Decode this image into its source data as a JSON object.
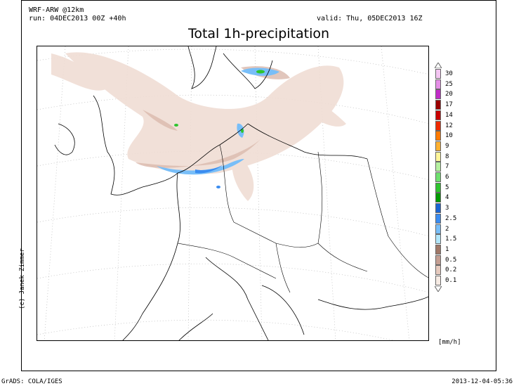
{
  "header": {
    "model": "WRF-ARW @12km",
    "run": "run: 04DEC2013 00Z +40h",
    "valid": "valid: Thu, 05DEC2013 16Z",
    "title": "Total 1h-precipitation"
  },
  "credit": "(c) Janek Zimmer",
  "legend": {
    "unit": "[mm/h]",
    "items": [
      {
        "label": "30",
        "color": "#f4c6f2"
      },
      {
        "label": "25",
        "color": "#e58fe6"
      },
      {
        "label": "20",
        "color": "#c02cc6"
      },
      {
        "label": "17",
        "color": "#9a0000"
      },
      {
        "label": "14",
        "color": "#c80000"
      },
      {
        "label": "12",
        "color": "#ee2a00"
      },
      {
        "label": "10",
        "color": "#ff7a00"
      },
      {
        "label": "9",
        "color": "#ffb030"
      },
      {
        "label": "8",
        "color": "#fff59a"
      },
      {
        "label": "7",
        "color": "#b6f0a0"
      },
      {
        "label": "6",
        "color": "#6ee06e"
      },
      {
        "label": "5",
        "color": "#2ec42e"
      },
      {
        "label": "4",
        "color": "#009a00"
      },
      {
        "label": "3",
        "color": "#1a64d2"
      },
      {
        "label": "2.5",
        "color": "#3a8cf0"
      },
      {
        "label": "2",
        "color": "#78bef8"
      },
      {
        "label": "1.5",
        "color": "#b2e6fa"
      },
      {
        "label": "1",
        "color": "#a07868"
      },
      {
        "label": "0.5",
        "color": "#c49e92"
      },
      {
        "label": "0.2",
        "color": "#e6cabe"
      },
      {
        "label": "0.1",
        "color": "#f6ebe4"
      }
    ]
  },
  "footer": {
    "left": "GrADS: COLA/IGES",
    "right": "2013-12-04-05:36"
  }
}
